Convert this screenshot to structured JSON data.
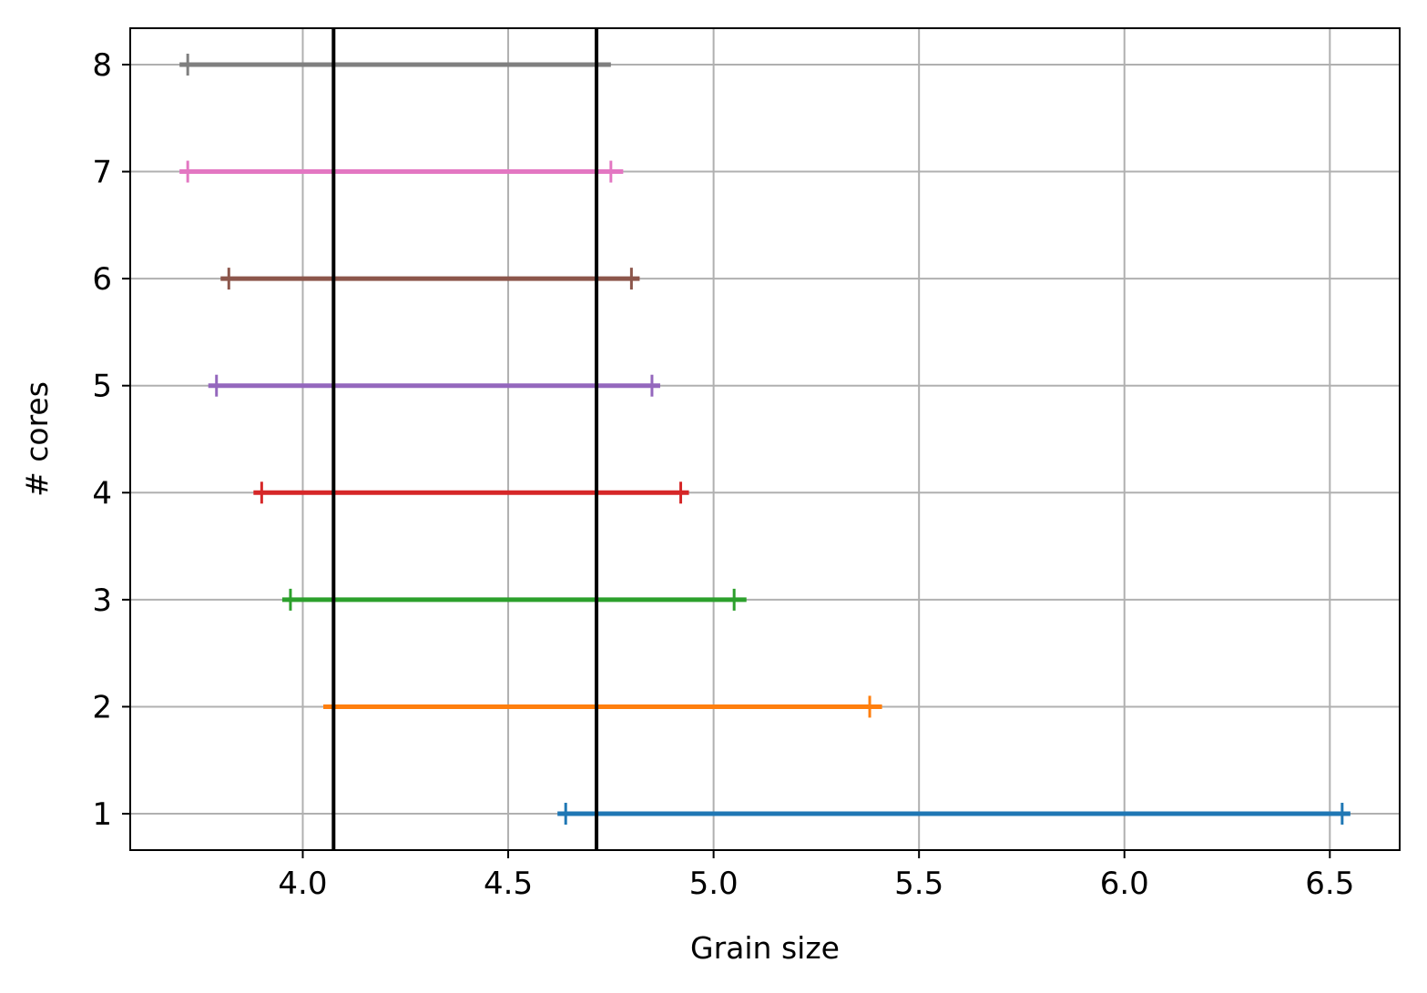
{
  "chart_data": {
    "type": "errorbar-range",
    "title": "",
    "xlabel": "Grain size",
    "ylabel": "# cores",
    "xlim": [
      3.58,
      6.67
    ],
    "ylim": [
      0.66,
      8.34
    ],
    "grid": true,
    "xticks": [
      4.0,
      4.5,
      5.0,
      5.5,
      6.0,
      6.5
    ],
    "xtick_labels": [
      "4.0",
      "4.5",
      "5.0",
      "5.5",
      "6.0",
      "6.5"
    ],
    "yticks": [
      1,
      2,
      3,
      4,
      5,
      6,
      7,
      8
    ],
    "ytick_labels": [
      "1",
      "2",
      "3",
      "4",
      "5",
      "6",
      "7",
      "8"
    ],
    "series": [
      {
        "y": 1,
        "xmin": 4.62,
        "xmax": 6.55,
        "markers": [
          4.64,
          6.53
        ],
        "color": "#1f77b4"
      },
      {
        "y": 2,
        "xmin": 4.05,
        "xmax": 5.41,
        "markers": [
          5.38
        ],
        "color": "#ff7f0e"
      },
      {
        "y": 3,
        "xmin": 3.95,
        "xmax": 5.08,
        "markers": [
          3.97,
          5.05
        ],
        "color": "#2ca02c"
      },
      {
        "y": 4,
        "xmin": 3.88,
        "xmax": 4.94,
        "markers": [
          3.9,
          4.92
        ],
        "color": "#d62728"
      },
      {
        "y": 5,
        "xmin": 3.77,
        "xmax": 4.87,
        "markers": [
          3.79,
          4.85
        ],
        "color": "#9467bd"
      },
      {
        "y": 6,
        "xmin": 3.8,
        "xmax": 4.82,
        "markers": [
          3.82,
          4.8
        ],
        "color": "#8c564b"
      },
      {
        "y": 7,
        "xmin": 3.7,
        "xmax": 4.78,
        "markers": [
          3.72,
          4.75
        ],
        "color": "#e377c2"
      },
      {
        "y": 8,
        "xmin": 3.7,
        "xmax": 4.75,
        "markers": [
          3.72
        ],
        "color": "#7f7f7f"
      }
    ],
    "vlines": [
      {
        "x": 4.075,
        "color": "#000000"
      },
      {
        "x": 4.715,
        "color": "#000000"
      }
    ]
  }
}
